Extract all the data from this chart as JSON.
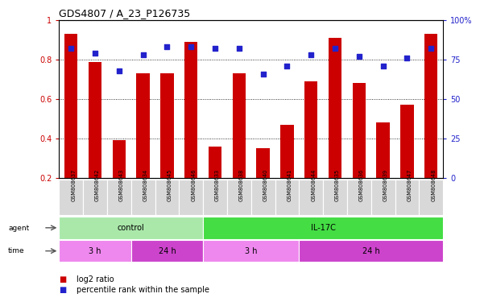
{
  "title": "GDS4807 / A_23_P126735",
  "samples": [
    "GSM808637",
    "GSM808642",
    "GSM808643",
    "GSM808634",
    "GSM808645",
    "GSM808646",
    "GSM808633",
    "GSM808638",
    "GSM808640",
    "GSM808641",
    "GSM808644",
    "GSM808635",
    "GSM808636",
    "GSM808639",
    "GSM808647",
    "GSM808648"
  ],
  "log2_ratio": [
    0.93,
    0.79,
    0.39,
    0.73,
    0.73,
    0.89,
    0.36,
    0.73,
    0.35,
    0.47,
    0.69,
    0.91,
    0.68,
    0.48,
    0.57,
    0.93
  ],
  "percentile": [
    82,
    79,
    68,
    78,
    83,
    83,
    82,
    82,
    66,
    71,
    78,
    82,
    77,
    71,
    76,
    82
  ],
  "bar_color": "#cc0000",
  "dot_color": "#2222cc",
  "ylim_left": [
    0.2,
    1.0
  ],
  "ylim_right": [
    0,
    100
  ],
  "yticks_left": [
    0.2,
    0.4,
    0.6,
    0.8,
    1.0
  ],
  "yticks_right": [
    0,
    25,
    50,
    75,
    100
  ],
  "yticklabels_left": [
    "0.2",
    "0.4",
    "0.6",
    "0.8",
    "1"
  ],
  "yticklabels_right": [
    "0",
    "25",
    "50",
    "75",
    "100%"
  ],
  "agent_groups": [
    {
      "label": "control",
      "start": 0,
      "end": 6,
      "color": "#aae8aa"
    },
    {
      "label": "IL-17C",
      "start": 6,
      "end": 16,
      "color": "#44dd44"
    }
  ],
  "time_groups": [
    {
      "label": "3 h",
      "start": 0,
      "end": 3,
      "color": "#ee88ee"
    },
    {
      "label": "24 h",
      "start": 3,
      "end": 6,
      "color": "#cc44cc"
    },
    {
      "label": "3 h",
      "start": 6,
      "end": 10,
      "color": "#ee88ee"
    },
    {
      "label": "24 h",
      "start": 10,
      "end": 16,
      "color": "#cc44cc"
    }
  ],
  "legend_items": [
    {
      "label": "log2 ratio",
      "color": "#cc0000"
    },
    {
      "label": "percentile rank within the sample",
      "color": "#2222cc"
    }
  ],
  "background_color": "#ffffff",
  "left_tick_color": "#cc0000",
  "right_tick_color": "#2222cc",
  "xtick_bg_color": "#d8d8d8"
}
